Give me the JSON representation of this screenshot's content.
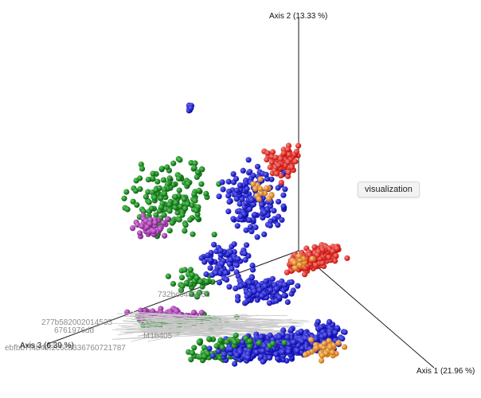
{
  "chart_data": {
    "type": "scatter",
    "title": "",
    "axes": [
      {
        "name": "Axis 1",
        "label": "Axis 1 (21.96 %)"
      },
      {
        "name": "Axis 2",
        "label": "Axis 2 (13.33 %)"
      },
      {
        "name": "Axis 3",
        "label": "Axis 3 (6.39 %)"
      }
    ],
    "series_colors": {
      "red": "#e8150f",
      "blue": "#1010d8",
      "green": "#0e8a14",
      "purple": "#a42fb0",
      "orange": "#f08c1e"
    },
    "series": [
      {
        "color_key": "red",
        "approx_points": 300
      },
      {
        "color_key": "blue",
        "approx_points": 1000
      },
      {
        "color_key": "green",
        "approx_points": 500
      },
      {
        "color_key": "purple",
        "approx_points": 120
      },
      {
        "color_key": "orange",
        "approx_points": 60
      }
    ],
    "visible_labels": [
      "732bc04e285c",
      "277b582002014535",
      "6761976dd",
      "f41b405",
      "ebfbb7f4b49f2c6c8336760721787"
    ],
    "grid": false,
    "legend": "none"
  },
  "ui": {
    "visualization_button": "visualization"
  }
}
